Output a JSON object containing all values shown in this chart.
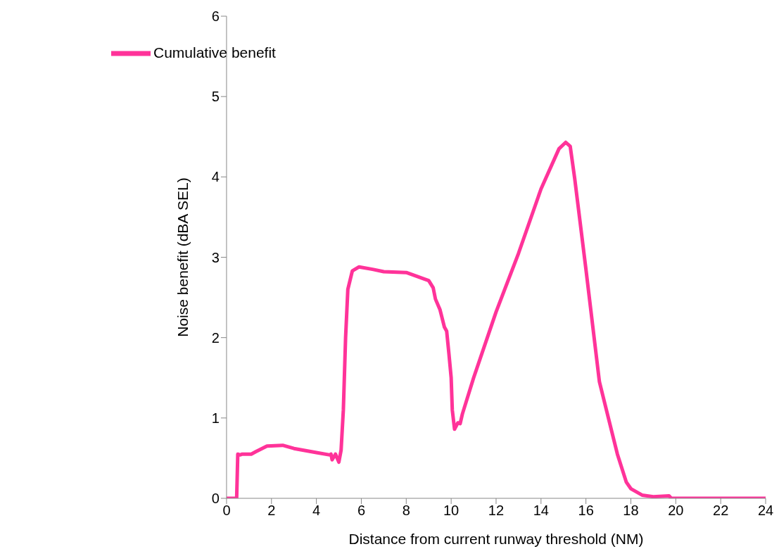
{
  "chart_data": {
    "type": "line",
    "xlabel": "Distance from current runway threshold (NM)",
    "ylabel": "Noise benefit (dBA SEL)",
    "x": [
      0,
      0.45,
      0.5,
      0.6,
      0.7,
      1.1,
      1.3,
      1.8,
      2.5,
      3,
      4,
      4.6,
      4.65,
      4.7,
      4.85,
      5,
      5.1,
      5.2,
      5.3,
      5.4,
      5.6,
      5.9,
      6.5,
      7,
      8,
      8.5,
      8.8,
      9,
      9.2,
      9.3,
      9.5,
      9.7,
      9.8,
      9.9,
      10,
      10.05,
      10.15,
      10.3,
      10.4,
      10.5,
      11,
      12,
      13,
      14,
      14.8,
      15.1,
      15.3,
      15.5,
      16,
      16.6,
      17,
      17.4,
      17.8,
      18,
      18.5,
      19,
      19.7,
      19.8,
      24
    ],
    "series": [
      {
        "name": "Cumulative benefit",
        "color": "#ff3399",
        "values": [
          0,
          0,
          0.55,
          0.54,
          0.55,
          0.55,
          0.58,
          0.65,
          0.66,
          0.62,
          0.57,
          0.54,
          0.55,
          0.48,
          0.55,
          0.45,
          0.6,
          1.1,
          2.0,
          2.6,
          2.83,
          2.88,
          2.85,
          2.82,
          2.81,
          2.76,
          2.73,
          2.71,
          2.62,
          2.48,
          2.35,
          2.13,
          2.08,
          1.8,
          1.5,
          1.1,
          0.86,
          0.94,
          0.93,
          1.05,
          1.5,
          2.32,
          3.05,
          3.85,
          4.35,
          4.43,
          4.38,
          3.98,
          2.85,
          1.45,
          1.0,
          0.55,
          0.2,
          0.12,
          0.04,
          0.02,
          0.03,
          0,
          0
        ]
      }
    ],
    "xlim": [
      0,
      24
    ],
    "xticks": [
      0,
      2,
      4,
      6,
      8,
      10,
      12,
      14,
      16,
      18,
      20,
      22,
      24
    ],
    "ylim": [
      0,
      6
    ],
    "yticks": [
      0,
      1,
      2,
      3,
      4,
      5,
      6
    ],
    "grid": false,
    "legend": "top left",
    "marker": "none",
    "line_style": "solid"
  }
}
